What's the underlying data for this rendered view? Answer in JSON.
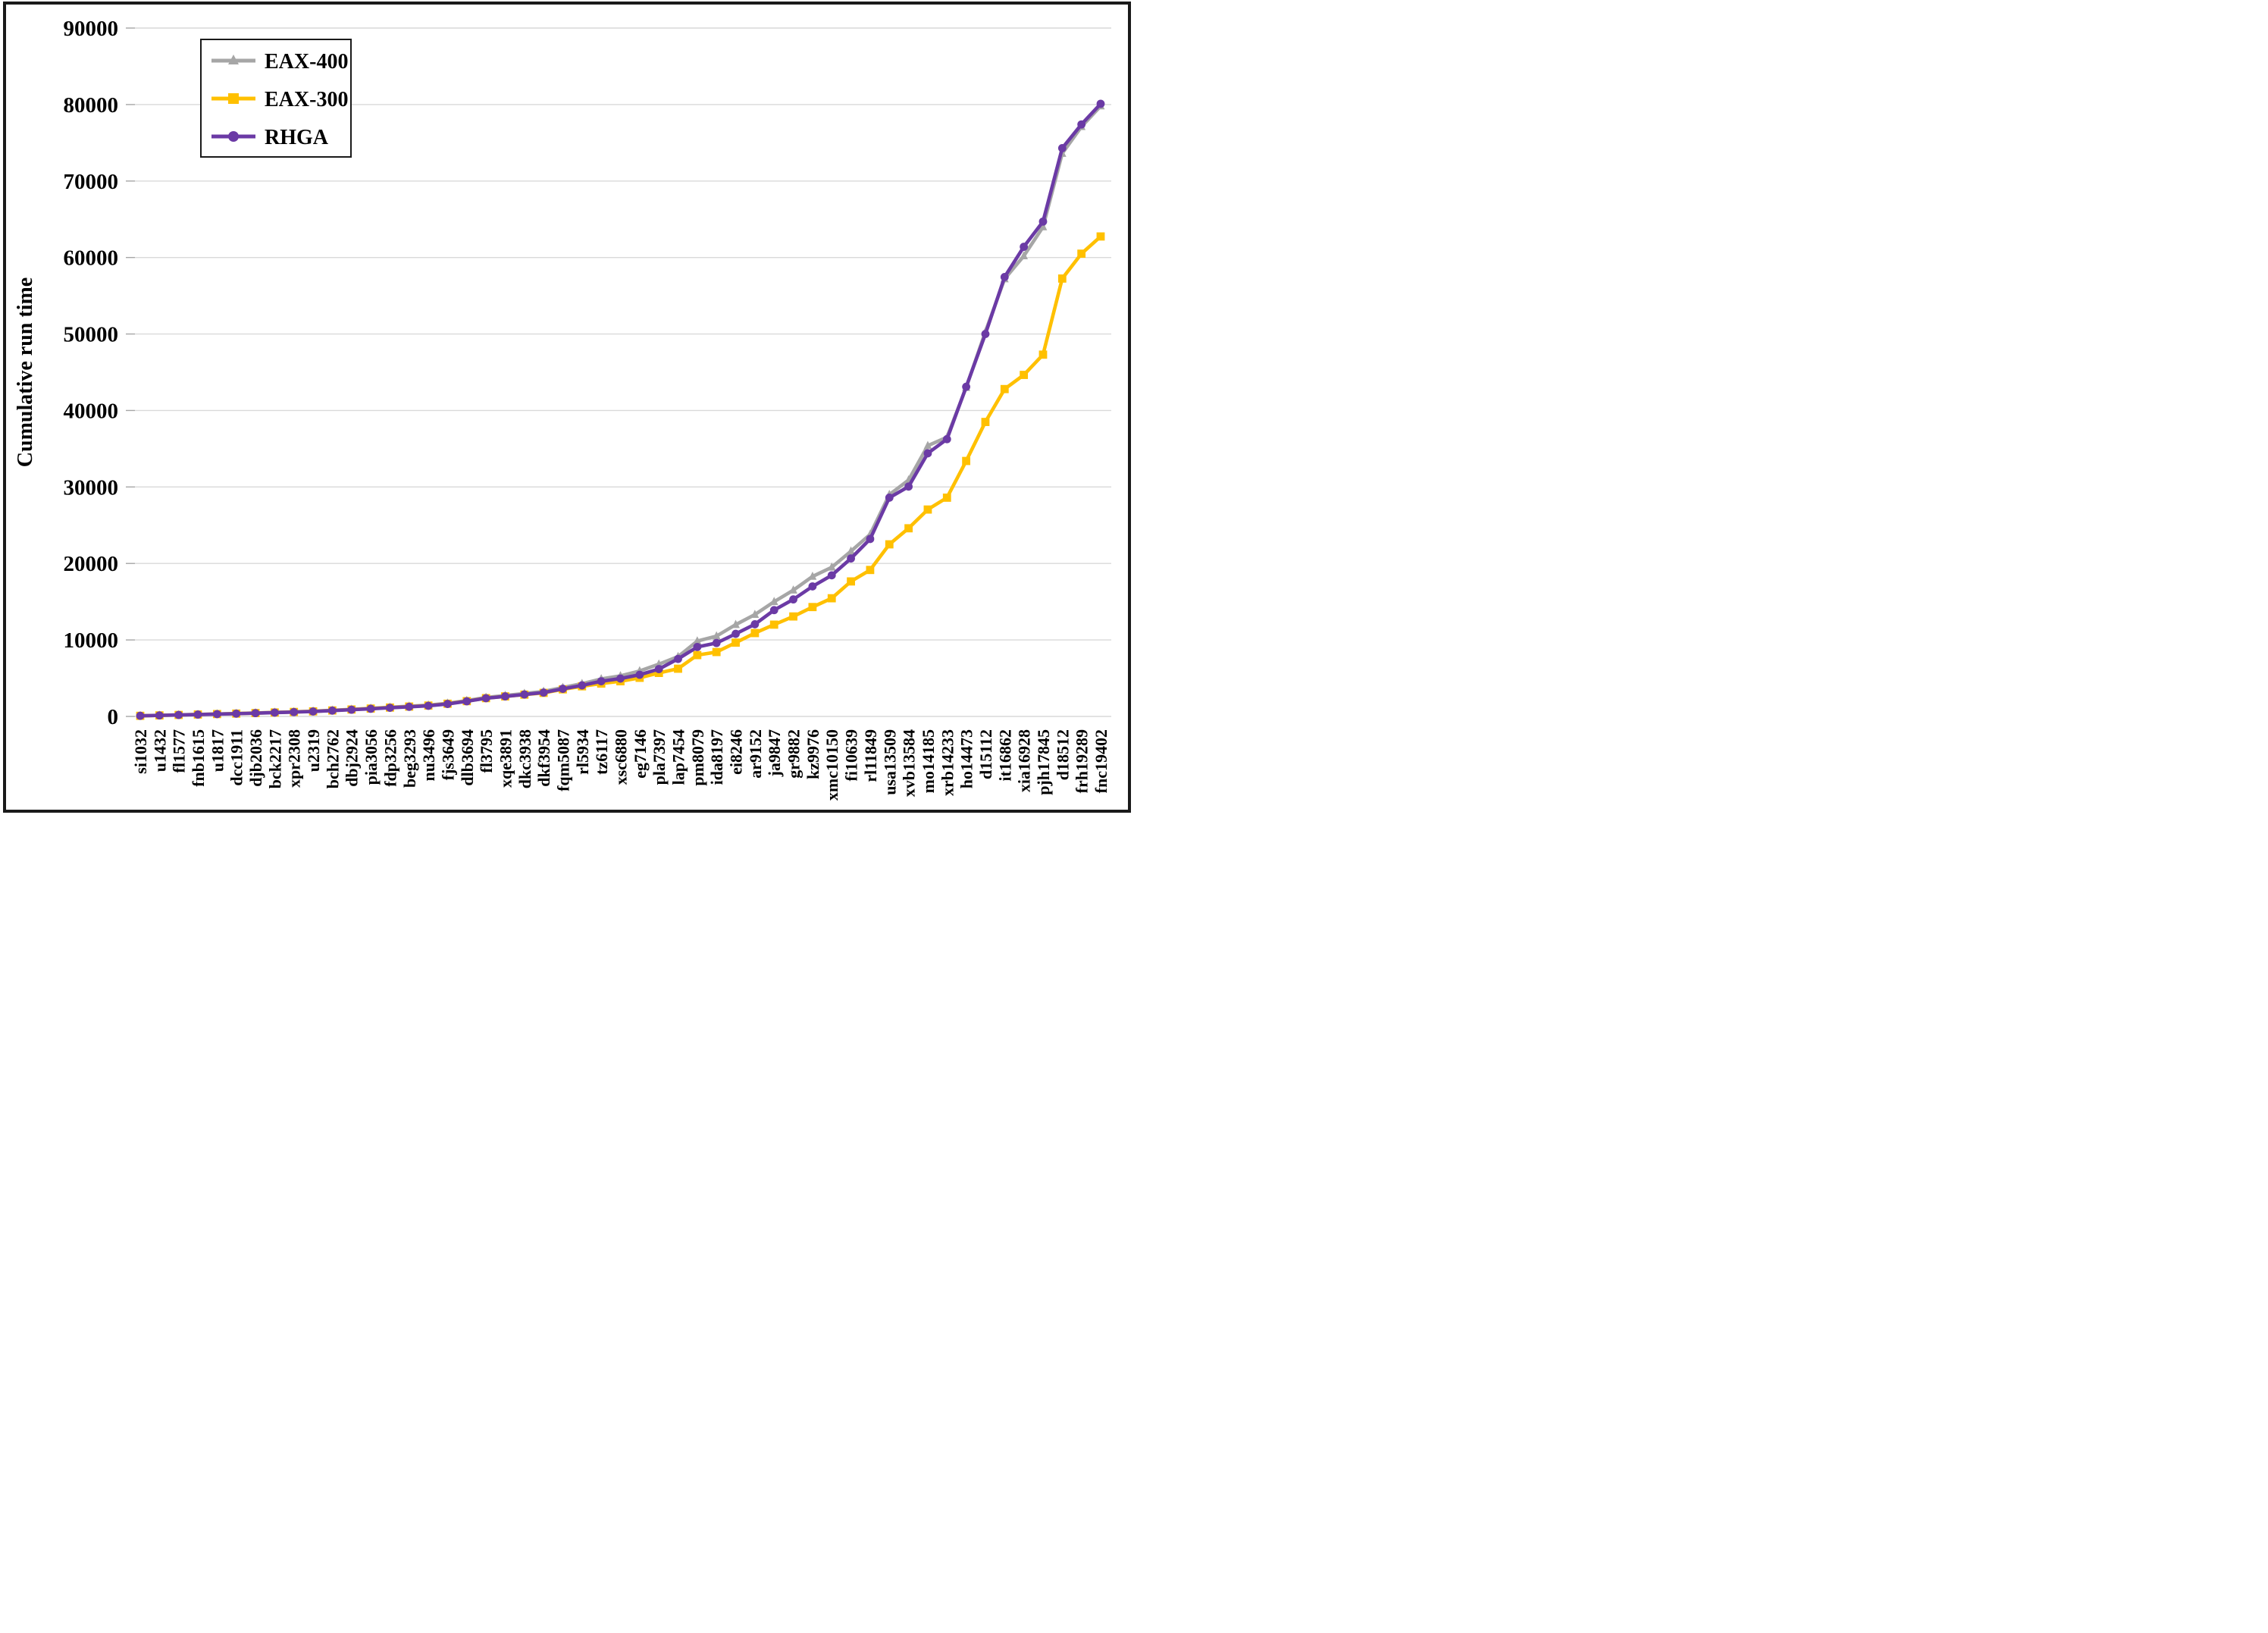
{
  "figure": {
    "background": "#ffffff",
    "border_color": "#1a1a1a"
  },
  "y_axis": {
    "title": "Cumulative run time",
    "tick_labels": [
      "0",
      "10000",
      "20000",
      "30000",
      "40000",
      "50000",
      "60000",
      "70000",
      "80000",
      "90000"
    ]
  },
  "legend": {
    "items": [
      {
        "label": "EAX-400",
        "color": "#A6A6A6",
        "marker": "triangle"
      },
      {
        "label": "EAX-300",
        "color": "#FFC000",
        "marker": "square"
      },
      {
        "label": "RHGA",
        "color": "#6B3AA5",
        "marker": "circle"
      }
    ]
  },
  "chart_data": {
    "type": "line",
    "title": "",
    "xlabel": "",
    "ylabel": "Cumulative run time",
    "ylim": [
      0,
      90000
    ],
    "y_tick_step": 10000,
    "grid": true,
    "legend_position": "top-left",
    "gridline_color": "#D9D9D9",
    "tick_color": "#A6A6A6",
    "categories": [
      "si1032",
      "u1432",
      "fl1577",
      "fnb1615",
      "u1817",
      "dcc1911",
      "djb2036",
      "bck2217",
      "xpr2308",
      "u2319",
      "bch2762",
      "dbj2924",
      "pia3056",
      "fdp3256",
      "beg3293",
      "nu3496",
      "fjs3649",
      "dlb3694",
      "fl3795",
      "xqe3891",
      "dkc3938",
      "dkf3954",
      "fqm5087",
      "rl5934",
      "tz6117",
      "xsc6880",
      "eg7146",
      "pla7397",
      "lap7454",
      "pm8079",
      "ida8197",
      "ei8246",
      "ar9152",
      "ja9847",
      "gr9882",
      "kz9976",
      "xmc10150",
      "fi10639",
      "rl11849",
      "usa13509",
      "xvb13584",
      "mo14185",
      "xrb14233",
      "ho14473",
      "d15112",
      "it16862",
      "xia16928",
      "pjh17845",
      "d18512",
      "frh19289",
      "fnc19402"
    ],
    "series": [
      {
        "name": "EAX-400",
        "color": "#A6A6A6",
        "marker": "triangle",
        "values": [
          85,
          140,
          200,
          260,
          320,
          385,
          455,
          530,
          605,
          685,
          805,
          930,
          1060,
          1195,
          1330,
          1470,
          1720,
          2070,
          2480,
          2740,
          3000,
          3270,
          3780,
          4280,
          4900,
          5300,
          5940,
          6830,
          7820,
          9850,
          10500,
          12000,
          13320,
          15000,
          16500,
          18300,
          19500,
          21600,
          23800,
          29000,
          30900,
          35400,
          36500,
          43000,
          50300,
          57200,
          60200,
          64000,
          73600,
          77100,
          79800
        ]
      },
      {
        "name": "EAX-300",
        "color": "#FFC000",
        "marker": "square",
        "values": [
          80,
          135,
          195,
          250,
          310,
          370,
          440,
          515,
          585,
          660,
          780,
          905,
          1030,
          1160,
          1290,
          1420,
          1660,
          2000,
          2390,
          2620,
          2850,
          3080,
          3540,
          3940,
          4300,
          4600,
          5050,
          5690,
          6240,
          8020,
          8420,
          9650,
          10900,
          12000,
          13070,
          14300,
          15450,
          17650,
          19150,
          22500,
          24600,
          27050,
          28600,
          33400,
          38500,
          42800,
          44650,
          47300,
          57250,
          60500,
          62750
        ]
      },
      {
        "name": "RHGA",
        "color": "#6B3AA5",
        "marker": "circle",
        "values": [
          80,
          135,
          190,
          245,
          300,
          360,
          430,
          500,
          570,
          645,
          760,
          880,
          1000,
          1130,
          1260,
          1390,
          1630,
          1980,
          2380,
          2620,
          2870,
          3120,
          3610,
          4060,
          4600,
          4950,
          5450,
          6190,
          7520,
          9080,
          9600,
          10800,
          12050,
          13900,
          15300,
          17000,
          18450,
          20650,
          23200,
          28600,
          30050,
          34400,
          36250,
          43100,
          50000,
          57450,
          61400,
          64700,
          74300,
          77400,
          80100
        ]
      }
    ]
  }
}
